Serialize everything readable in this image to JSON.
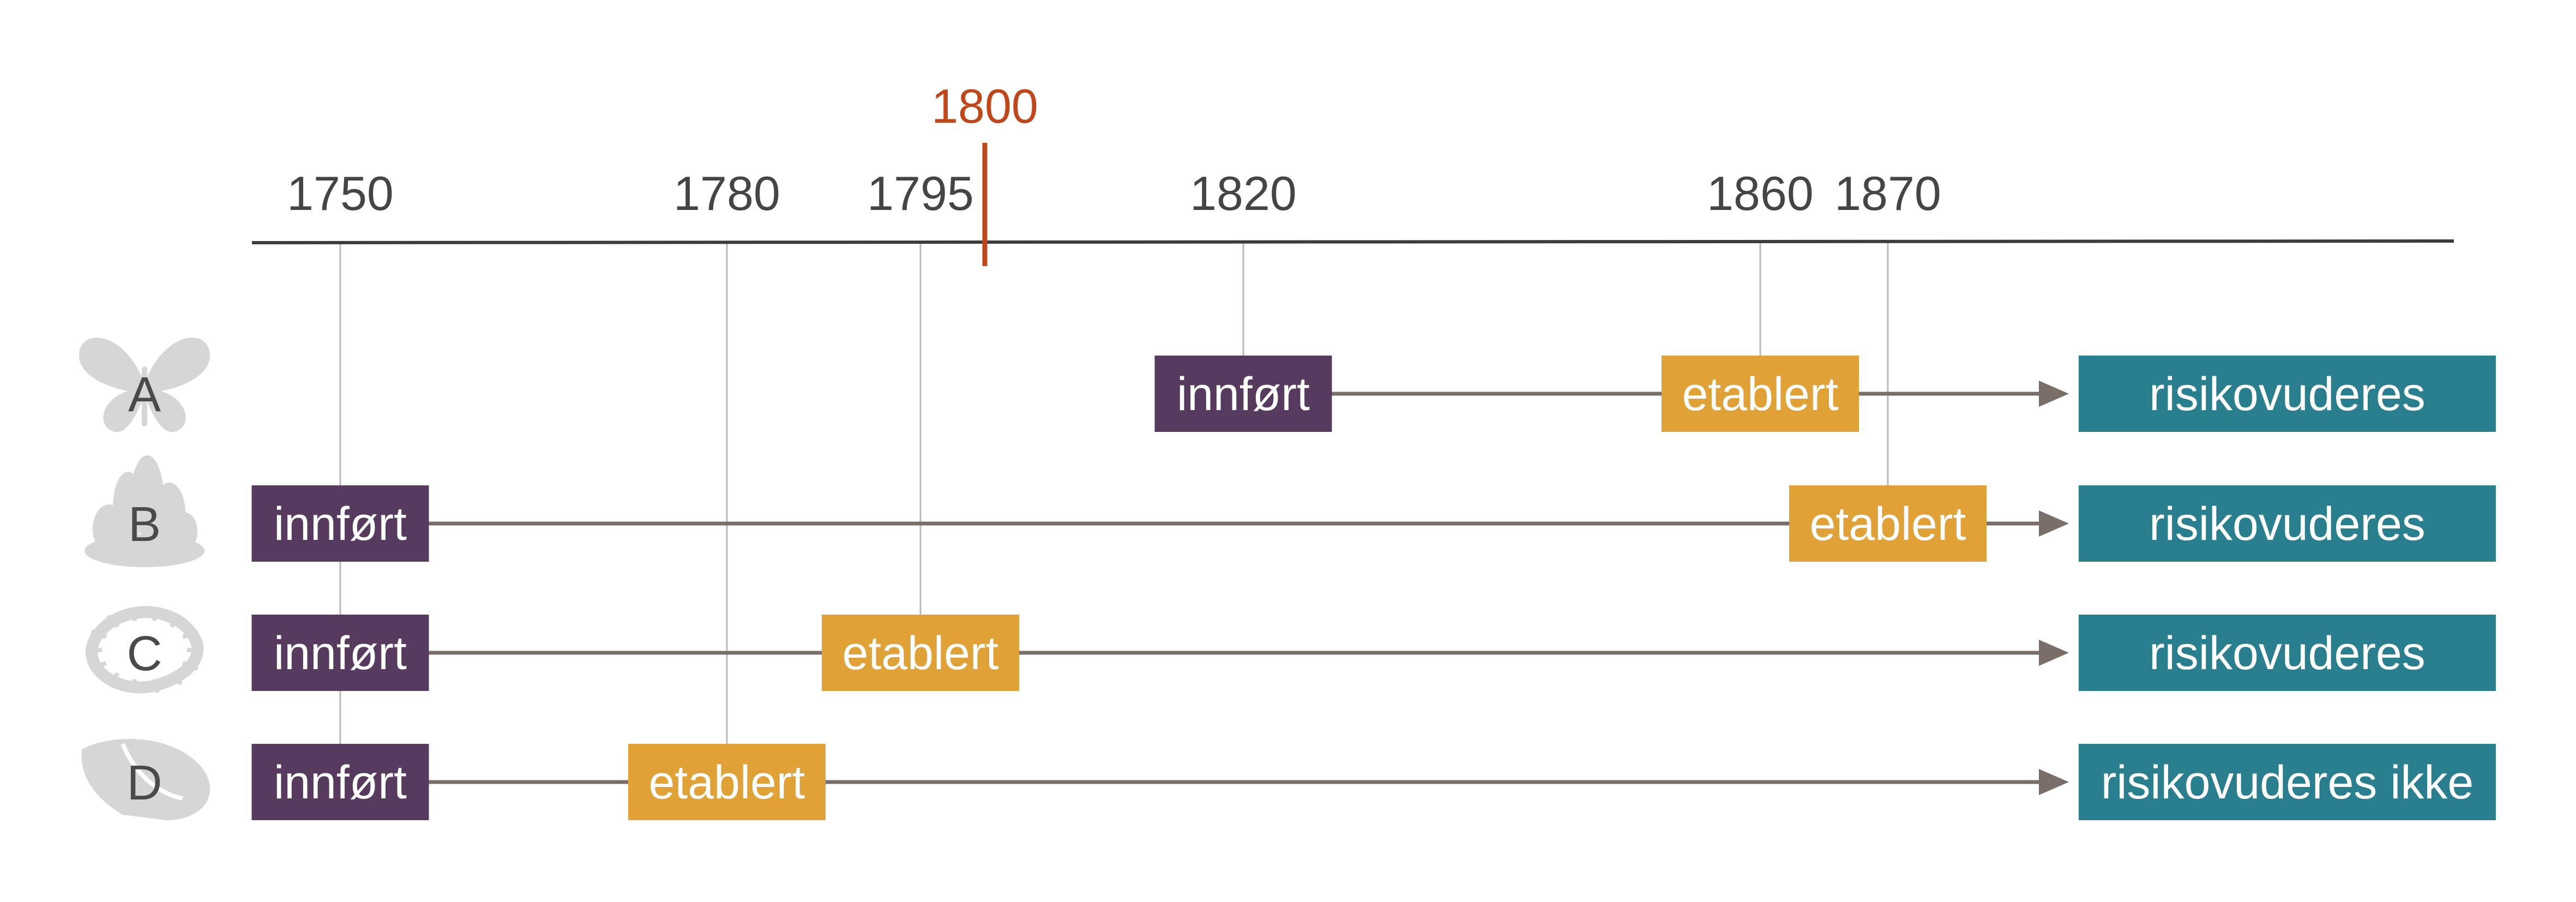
{
  "colors": {
    "axis": "#3c3c3c",
    "reference": "#c0471a",
    "guide": "#b8b8b8",
    "arrow": "#7a6e69",
    "introduced": "#563b5e",
    "established": "#e0a237",
    "assessment": "#2a7f8e",
    "icon": "#d6d6d6"
  },
  "timeline": {
    "reference_year": "1800",
    "ticks": [
      "1750",
      "1780",
      "1795",
      "1820",
      "1860",
      "1870"
    ]
  },
  "rows": [
    {
      "letter": "A",
      "icon": "butterfly-icon",
      "introduced": {
        "label": "innført",
        "year": 1820
      },
      "established": {
        "label": "etablert",
        "year": 1860
      },
      "outcome": "risikovuderes"
    },
    {
      "letter": "B",
      "icon": "coral-icon",
      "introduced": {
        "label": "innført",
        "year": 1750
      },
      "established": {
        "label": "etablert",
        "year": 1870
      },
      "outcome": "risikovuderes"
    },
    {
      "letter": "C",
      "icon": "worm-icon",
      "introduced": {
        "label": "innført",
        "year": 1750
      },
      "established": {
        "label": "etablert",
        "year": 1795
      },
      "outcome": "risikovuderes"
    },
    {
      "letter": "D",
      "icon": "shell-icon",
      "introduced": {
        "label": "innført",
        "year": 1750
      },
      "established": {
        "label": "etablert",
        "year": 1780
      },
      "outcome": "risikovuderes ikke"
    }
  ]
}
